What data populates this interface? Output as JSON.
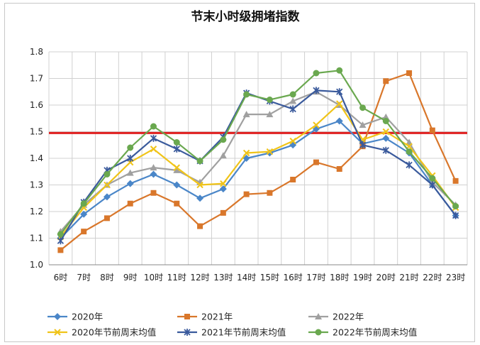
{
  "chart_data": {
    "type": "line",
    "title": "节末小时级拥堵指数",
    "categories": [
      "6时",
      "7时",
      "8时",
      "9时",
      "10时",
      "11时",
      "12时",
      "13时",
      "14时",
      "15时",
      "16时",
      "17时",
      "18时",
      "19时",
      "20时",
      "21时",
      "22时",
      "23时"
    ],
    "ylim": [
      1.0,
      1.8
    ],
    "yticks": [
      "1.0",
      "1.1",
      "1.2",
      "1.3",
      "1.4",
      "1.5",
      "1.6",
      "1.7",
      "1.8"
    ],
    "grid": true,
    "legend_position": "bottom",
    "reference_line": {
      "value": 1.495,
      "color": "#e02020"
    },
    "series": [
      {
        "name": "2020年",
        "color": "#4a86c8",
        "marker": "diamond",
        "values": [
          1.1,
          1.19,
          1.255,
          1.305,
          1.34,
          1.3,
          1.25,
          1.285,
          1.4,
          1.42,
          1.45,
          1.51,
          1.54,
          1.455,
          1.475,
          1.42,
          1.3,
          1.185
        ]
      },
      {
        "name": "2021年",
        "color": "#d9772b",
        "marker": "square",
        "values": [
          1.055,
          1.125,
          1.175,
          1.23,
          1.27,
          1.23,
          1.145,
          1.195,
          1.265,
          1.27,
          1.32,
          1.385,
          1.36,
          1.445,
          1.69,
          1.72,
          1.505,
          1.315
        ]
      },
      {
        "name": "2022年",
        "color": "#a0a0a0",
        "marker": "triangle",
        "values": [
          1.125,
          1.225,
          1.3,
          1.345,
          1.365,
          1.355,
          1.31,
          1.41,
          1.565,
          1.565,
          1.615,
          1.65,
          1.6,
          1.525,
          1.555,
          1.46,
          1.31,
          1.225
        ]
      },
      {
        "name": "2020年节前周末均值",
        "color": "#f0c419",
        "marker": "x",
        "values": [
          1.105,
          1.215,
          1.3,
          1.385,
          1.435,
          1.365,
          1.3,
          1.305,
          1.42,
          1.425,
          1.465,
          1.525,
          1.605,
          1.47,
          1.5,
          1.445,
          1.335,
          1.215
        ]
      },
      {
        "name": "2021年节前周末均值",
        "color": "#3a5a9c",
        "marker": "star",
        "values": [
          1.09,
          1.235,
          1.355,
          1.4,
          1.475,
          1.435,
          1.39,
          1.48,
          1.645,
          1.615,
          1.585,
          1.655,
          1.65,
          1.45,
          1.43,
          1.375,
          1.3,
          1.185
        ]
      },
      {
        "name": "2022年节前周末均值",
        "color": "#6aa84f",
        "marker": "circle",
        "values": [
          1.115,
          1.23,
          1.34,
          1.44,
          1.52,
          1.46,
          1.39,
          1.47,
          1.64,
          1.62,
          1.64,
          1.72,
          1.73,
          1.59,
          1.54,
          1.425,
          1.325,
          1.22
        ]
      }
    ]
  }
}
